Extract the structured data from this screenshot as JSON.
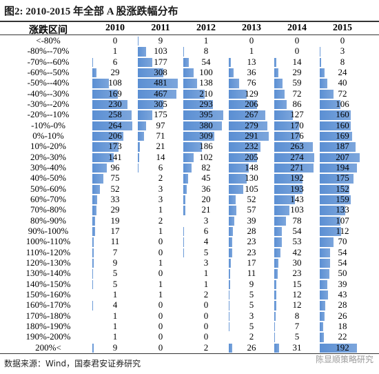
{
  "title": "图2:  2010-2015 年全部 A 股涨跌幅分布",
  "bar_color": "#5b8fd3",
  "table": {
    "header": [
      "涨跌区间",
      "2010",
      "2011",
      "2012",
      "2013",
      "2014",
      "2015"
    ],
    "rows": [
      [
        "<-80%",
        0,
        9,
        1,
        0,
        0,
        0
      ],
      [
        "-80%--70%",
        1,
        103,
        8,
        1,
        0,
        3
      ],
      [
        "-70%--60%",
        6,
        177,
        54,
        13,
        14,
        8
      ],
      [
        "-60%--50%",
        29,
        308,
        100,
        36,
        29,
        24
      ],
      [
        "-50%--40%",
        108,
        481,
        138,
        76,
        59,
        40
      ],
      [
        "-40%--30%",
        169,
        467,
        210,
        129,
        72,
        72
      ],
      [
        "-30%--20%",
        230,
        305,
        293,
        206,
        86,
        106
      ],
      [
        "-20%--10%",
        258,
        175,
        395,
        267,
        127,
        160
      ],
      [
        "-10%-0%",
        264,
        97,
        380,
        279,
        170,
        160
      ],
      [
        "0%-10%",
        206,
        71,
        309,
        291,
        176,
        169
      ],
      [
        "10%-20%",
        173,
        21,
        186,
        232,
        263,
        187
      ],
      [
        "20%-30%",
        141,
        14,
        102,
        205,
        274,
        207
      ],
      [
        "30%-40%",
        96,
        6,
        82,
        148,
        271,
        194
      ],
      [
        "40%-50%",
        75,
        2,
        45,
        130,
        192,
        175
      ],
      [
        "50%-60%",
        52,
        3,
        36,
        105,
        193,
        152
      ],
      [
        "60%-70%",
        33,
        3,
        20,
        52,
        143,
        159
      ],
      [
        "70%-80%",
        29,
        1,
        21,
        57,
        103,
        133
      ],
      [
        "80%-90%",
        19,
        2,
        3,
        39,
        78,
        107
      ],
      [
        "90%-100%",
        17,
        1,
        6,
        28,
        54,
        112
      ],
      [
        "100%-110%",
        11,
        0,
        4,
        23,
        53,
        70
      ],
      [
        "110%-120%",
        7,
        0,
        5,
        23,
        42,
        54
      ],
      [
        "120%-130%",
        9,
        1,
        3,
        17,
        30,
        54
      ],
      [
        "130%-140%",
        5,
        0,
        1,
        11,
        23,
        50
      ],
      [
        "140%-150%",
        5,
        1,
        1,
        9,
        15,
        39
      ],
      [
        "150%-160%",
        1,
        1,
        2,
        5,
        12,
        43
      ],
      [
        "160%-170%",
        4,
        0,
        0,
        5,
        12,
        28
      ],
      [
        "170%-180%",
        1,
        0,
        0,
        3,
        8,
        26
      ],
      [
        "180%-190%",
        1,
        0,
        0,
        5,
        7,
        18
      ],
      [
        "190%-200%",
        1,
        0,
        0,
        2,
        5,
        22
      ],
      [
        "200%<",
        9,
        0,
        2,
        26,
        31,
        192
      ]
    ]
  },
  "footer": "数据来源：Wind，国泰君安证券研究",
  "watermark": "陈显顺策略研究"
}
